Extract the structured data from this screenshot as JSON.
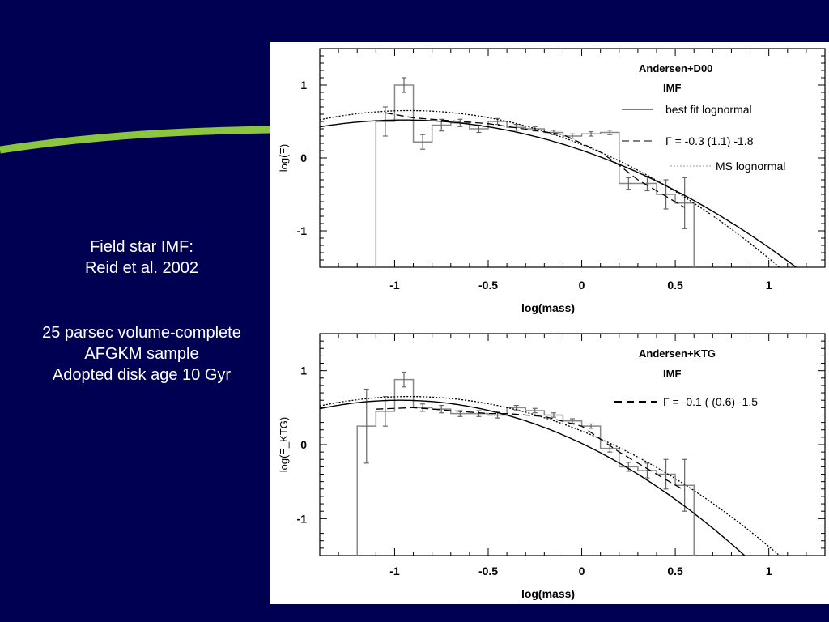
{
  "slide": {
    "title_line1": "Field star IMF:",
    "title_line2": "Reid et al. 2002",
    "desc_line1": "25 parsec volume-complete",
    "desc_line2": "AFGKM sample",
    "desc_line3": "Adopted disk age 10 Gyr",
    "background_color": "#000052",
    "accent_color": "#8CC63F"
  },
  "chart_data": [
    {
      "type": "line",
      "title": "Andersen+D00",
      "subtitle": "IMF",
      "xlabel": "log(mass)",
      "ylabel": "log(Ξ)",
      "xlim": [
        -1.4,
        1.3
      ],
      "ylim": [
        -1.5,
        1.5
      ],
      "xticks": [
        -1,
        -0.5,
        0,
        0.5,
        1
      ],
      "xtick_labels": [
        "-1",
        "-0.5",
        "0",
        "0.5",
        "1"
      ],
      "yticks": [
        -1,
        0,
        1
      ],
      "ytick_labels": [
        "-1",
        "0",
        "1"
      ],
      "legend": [
        {
          "style": "solid",
          "label": "best fit lognormal"
        },
        {
          "style": "dashed",
          "label": "Γ =  -0.3 (1.1)  -1.8"
        },
        {
          "style": "dotted",
          "label": "MS lognormal"
        }
      ],
      "histogram": {
        "edges": [
          -1.1,
          -1.0,
          -0.9,
          -0.8,
          -0.7,
          -0.6,
          -0.5,
          -0.4,
          -0.3,
          -0.2,
          -0.1,
          0.0,
          0.1,
          0.2,
          0.3,
          0.4,
          0.5,
          0.6
        ],
        "values": [
          0.5,
          1.0,
          0.22,
          0.45,
          0.48,
          0.4,
          0.5,
          0.42,
          0.4,
          0.35,
          0.3,
          0.33,
          0.35,
          -0.35,
          -0.35,
          -0.5,
          -0.62
        ],
        "errors": [
          0.2,
          0.1,
          0.1,
          0.08,
          0.05,
          0.05,
          0.04,
          0.04,
          0.03,
          0.03,
          0.03,
          0.03,
          0.03,
          0.08,
          0.1,
          0.2,
          0.35
        ]
      },
      "series": [
        {
          "style": "solid",
          "type": "lognormal",
          "peak": 0.52,
          "center": -0.95,
          "curvature": 0.46
        },
        {
          "style": "dotted",
          "type": "lognormal",
          "peak": 0.65,
          "center": -0.92,
          "curvature": 0.55
        },
        {
          "style": "dashed",
          "type": "polyline",
          "x": [
            -1.05,
            -0.9,
            -0.5,
            -0.1,
            0.1,
            0.2,
            0.3,
            0.4,
            0.55
          ],
          "y": [
            0.62,
            0.55,
            0.47,
            0.32,
            0.08,
            -0.1,
            -0.3,
            -0.45,
            -0.68
          ]
        }
      ]
    },
    {
      "type": "line",
      "title": "Andersen+KTG",
      "subtitle": "IMF",
      "xlabel": "log(mass)",
      "ylabel": "log(Ξ_KTG)",
      "xlim": [
        -1.4,
        1.3
      ],
      "ylim": [
        -1.5,
        1.5
      ],
      "xticks": [
        -1,
        -0.5,
        0,
        0.5,
        1
      ],
      "xtick_labels": [
        "-1",
        "-0.5",
        "0",
        "0.5",
        "1"
      ],
      "yticks": [
        -1,
        0,
        1
      ],
      "ytick_labels": [
        "-1",
        "0",
        "1"
      ],
      "legend": [
        {
          "style": "dashed",
          "label": "Γ = -0.1 ( (0.6)  -1.5"
        }
      ],
      "histogram": {
        "edges": [
          -1.2,
          -1.1,
          -1.0,
          -0.9,
          -0.8,
          -0.7,
          -0.6,
          -0.5,
          -0.4,
          -0.3,
          -0.2,
          -0.1,
          0.0,
          0.1,
          0.2,
          0.3,
          0.4,
          0.5,
          0.6
        ],
        "values": [
          0.25,
          0.45,
          0.88,
          0.5,
          0.48,
          0.42,
          0.42,
          0.4,
          0.5,
          0.46,
          0.4,
          0.32,
          0.25,
          -0.05,
          -0.3,
          -0.35,
          -0.4,
          -0.55
        ],
        "errors": [
          0.5,
          0.2,
          0.1,
          0.05,
          0.05,
          0.04,
          0.04,
          0.04,
          0.03,
          0.03,
          0.03,
          0.03,
          0.03,
          0.05,
          0.06,
          0.1,
          0.2,
          0.35
        ]
      },
      "series": [
        {
          "style": "solid",
          "type": "lognormal",
          "peak": 0.6,
          "center": -0.97,
          "curvature": 0.62
        },
        {
          "style": "dotted",
          "type": "lognormal",
          "peak": 0.65,
          "center": -0.92,
          "curvature": 0.55
        },
        {
          "style": "dashed",
          "type": "polyline",
          "x": [
            -1.1,
            -0.9,
            -0.5,
            -0.4,
            -0.2,
            0.0,
            0.2,
            0.4,
            0.55
          ],
          "y": [
            0.48,
            0.5,
            0.42,
            0.42,
            0.38,
            0.25,
            -0.1,
            -0.4,
            -0.62
          ]
        }
      ]
    }
  ]
}
